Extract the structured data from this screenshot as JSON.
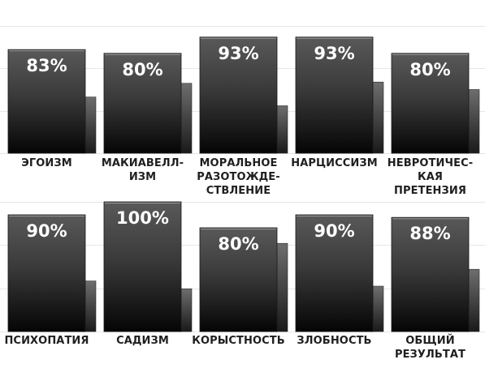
{
  "chart_data": {
    "type": "bar",
    "ylim": [
      0,
      100
    ],
    "grid": true,
    "rows": [
      {
        "categories": [
          "ЭГОИЗМ",
          "МАКИАВЕЛЛ-\nИЗМ",
          "МОРАЛЬНОЕ\nРАЗОТОЖДЕ-\nСТВЛЕНИЕ",
          "НАРЦИССИЗМ",
          "НЕВРОТИЧЕС-\nКАЯ ПРЕТЕНЗИЯ"
        ],
        "values": [
          83,
          80,
          93,
          93,
          80
        ],
        "value_labels": [
          "83%",
          "80%",
          "93%",
          "93%",
          "80%"
        ],
        "secondary_values": [
          45,
          56,
          38,
          57,
          51
        ]
      },
      {
        "categories": [
          "ПСИХОПАТИЯ",
          "САДИЗМ",
          "КОРЫСТНОСТЬ",
          "ЗЛОБНОСТЬ",
          "ОБЩИЙ\nРЕЗУЛЬТАТ"
        ],
        "values": [
          90,
          100,
          80,
          90,
          88
        ],
        "value_labels": [
          "90%",
          "100%",
          "80%",
          "90%",
          "88%"
        ],
        "secondary_values": [
          39,
          33,
          68,
          35,
          48
        ]
      }
    ],
    "colors": {
      "bar_top": "#595959",
      "bar_bottom": "#050505",
      "secondary_top": "#6e6e6e",
      "secondary_bottom": "#1a1a1a",
      "grid": "#e6e6e6",
      "value_label": "#ffffff",
      "category_label": "#1f1f1f"
    }
  }
}
